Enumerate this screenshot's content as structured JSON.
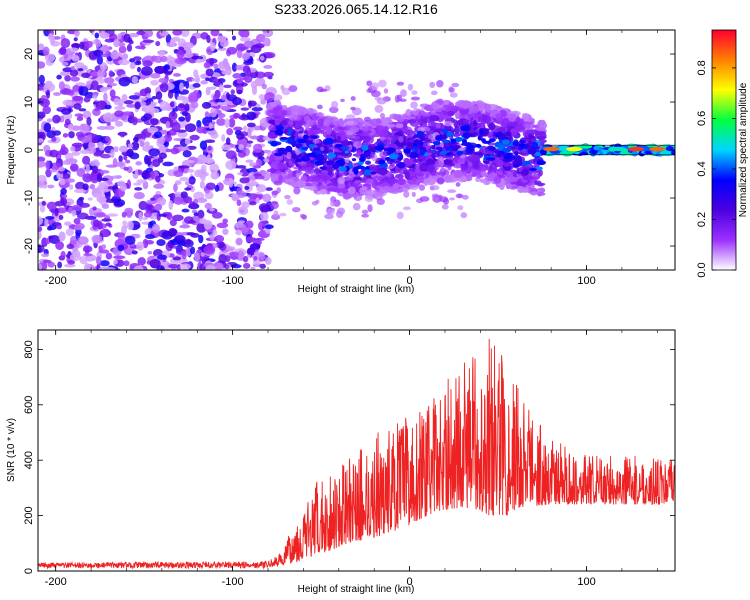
{
  "title": "S233.2026.065.14.12.R16",
  "chart_data": [
    {
      "type": "heatmap",
      "name": "spectrogram",
      "xlabel": "Height of straight line (km)",
      "ylabel": "Frequency (Hz)",
      "xlim": [
        -210,
        150
      ],
      "ylim": [
        -25,
        25
      ],
      "xticks": [
        -200,
        -100,
        0,
        100
      ],
      "xtick_labels": [
        "-200",
        "-100",
        "0",
        "100"
      ],
      "yticks": [
        20,
        10,
        0,
        -10,
        -20
      ],
      "ytick_labels": [
        "20",
        "10",
        "0",
        "-10",
        "-20"
      ],
      "colorbar": {
        "label": "Normalized spectral amplitude",
        "range": [
          0,
          0.95
        ],
        "ticks": [
          0.0,
          0.2,
          0.4,
          0.6,
          0.8
        ],
        "tick_labels": [
          "0.0",
          "0.2",
          "0.4",
          "0.6",
          "0.8"
        ],
        "colormap": [
          "#ffffff",
          "#9b30ff",
          "#4b00e0",
          "#0000ff",
          "#00d5ff",
          "#00ff40",
          "#ffff00",
          "#ff8000",
          "#ff0030"
        ]
      },
      "regions": [
        {
          "x_range": [
            -210,
            -78
          ],
          "freq_range": [
            -25,
            25
          ],
          "level": "low",
          "description_amp": 0.1
        },
        {
          "x_range": [
            -78,
            75
          ],
          "freq_range": [
            -10,
            10
          ],
          "level": "medium",
          "description_amp": 0.3
        },
        {
          "x_range": [
            75,
            150
          ],
          "freq_range": [
            -1,
            1
          ],
          "level": "high",
          "description_amp": 0.9
        }
      ]
    },
    {
      "type": "line",
      "name": "snr",
      "xlabel": "Height of straight line (km)",
      "ylabel": "SNR (10 * v/v)",
      "xlim": [
        -210,
        150
      ],
      "ylim": [
        0,
        870
      ],
      "xticks": [
        -200,
        -100,
        0,
        100
      ],
      "xtick_labels": [
        "-200",
        "-100",
        "0",
        "100"
      ],
      "yticks": [
        0,
        200,
        400,
        600,
        800
      ],
      "ytick_labels": [
        "0",
        "200",
        "400",
        "600",
        "800"
      ],
      "color": "#ee2222",
      "envelope": {
        "x": [
          -210,
          -80,
          -72,
          -65,
          -50,
          -35,
          -20,
          -5,
          10,
          20,
          30,
          40,
          45,
          55,
          65,
          80,
          100,
          120,
          150
        ],
        "lo": [
          10,
          10,
          20,
          30,
          60,
          100,
          120,
          150,
          200,
          220,
          230,
          220,
          200,
          200,
          230,
          240,
          240,
          240,
          240
        ],
        "hi": [
          30,
          35,
          70,
          180,
          350,
          400,
          500,
          550,
          600,
          680,
          760,
          800,
          870,
          780,
          640,
          480,
          420,
          420,
          400
        ]
      }
    }
  ]
}
